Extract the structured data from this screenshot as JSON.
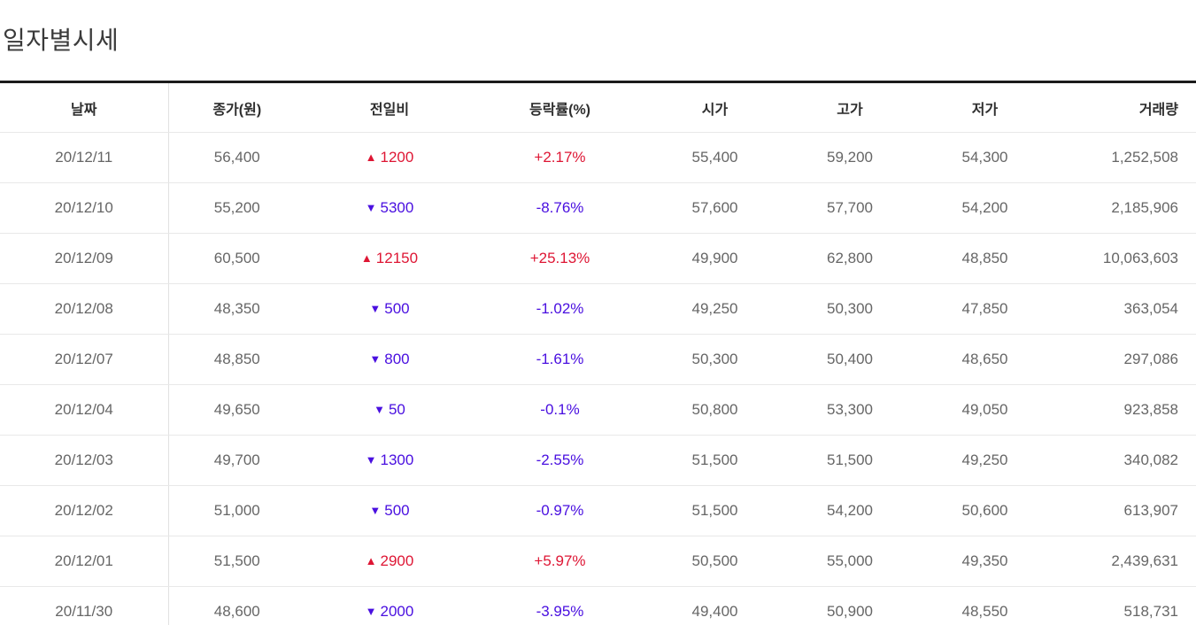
{
  "page": {
    "title": "일자별시세"
  },
  "colors": {
    "up": "#de1634",
    "down": "#4a10e0",
    "body_text": "#666666",
    "header_text": "#2e2e2e",
    "border_dark": "#1b1b1b",
    "border_light": "#e8e8e8"
  },
  "icons": {
    "up": "▲",
    "down": "▼"
  },
  "table": {
    "columns": [
      {
        "key": "date",
        "label": "날짜"
      },
      {
        "key": "close",
        "label": "종가(원)"
      },
      {
        "key": "change",
        "label": "전일비"
      },
      {
        "key": "rate",
        "label": "등락률(%)"
      },
      {
        "key": "open",
        "label": "시가"
      },
      {
        "key": "high",
        "label": "고가"
      },
      {
        "key": "low",
        "label": "저가"
      },
      {
        "key": "volume",
        "label": "거래량"
      }
    ],
    "rows": [
      {
        "date": "20/12/11",
        "close": "56,400",
        "direction": "up",
        "change": "1200",
        "rate": "+2.17%",
        "open": "55,400",
        "high": "59,200",
        "low": "54,300",
        "volume": "1,252,508"
      },
      {
        "date": "20/12/10",
        "close": "55,200",
        "direction": "down",
        "change": "5300",
        "rate": "-8.76%",
        "open": "57,600",
        "high": "57,700",
        "low": "54,200",
        "volume": "2,185,906"
      },
      {
        "date": "20/12/09",
        "close": "60,500",
        "direction": "up",
        "change": "12150",
        "rate": "+25.13%",
        "open": "49,900",
        "high": "62,800",
        "low": "48,850",
        "volume": "10,063,603"
      },
      {
        "date": "20/12/08",
        "close": "48,350",
        "direction": "down",
        "change": "500",
        "rate": "-1.02%",
        "open": "49,250",
        "high": "50,300",
        "low": "47,850",
        "volume": "363,054"
      },
      {
        "date": "20/12/07",
        "close": "48,850",
        "direction": "down",
        "change": "800",
        "rate": "-1.61%",
        "open": "50,300",
        "high": "50,400",
        "low": "48,650",
        "volume": "297,086"
      },
      {
        "date": "20/12/04",
        "close": "49,650",
        "direction": "down",
        "change": "50",
        "rate": "-0.1%",
        "open": "50,800",
        "high": "53,300",
        "low": "49,050",
        "volume": "923,858"
      },
      {
        "date": "20/12/03",
        "close": "49,700",
        "direction": "down",
        "change": "1300",
        "rate": "-2.55%",
        "open": "51,500",
        "high": "51,500",
        "low": "49,250",
        "volume": "340,082"
      },
      {
        "date": "20/12/02",
        "close": "51,000",
        "direction": "down",
        "change": "500",
        "rate": "-0.97%",
        "open": "51,500",
        "high": "54,200",
        "low": "50,600",
        "volume": "613,907"
      },
      {
        "date": "20/12/01",
        "close": "51,500",
        "direction": "up",
        "change": "2900",
        "rate": "+5.97%",
        "open": "50,500",
        "high": "55,000",
        "low": "49,350",
        "volume": "2,439,631"
      },
      {
        "date": "20/11/30",
        "close": "48,600",
        "direction": "down",
        "change": "2000",
        "rate": "-3.95%",
        "open": "49,400",
        "high": "50,900",
        "low": "48,550",
        "volume": "518,731"
      }
    ]
  }
}
